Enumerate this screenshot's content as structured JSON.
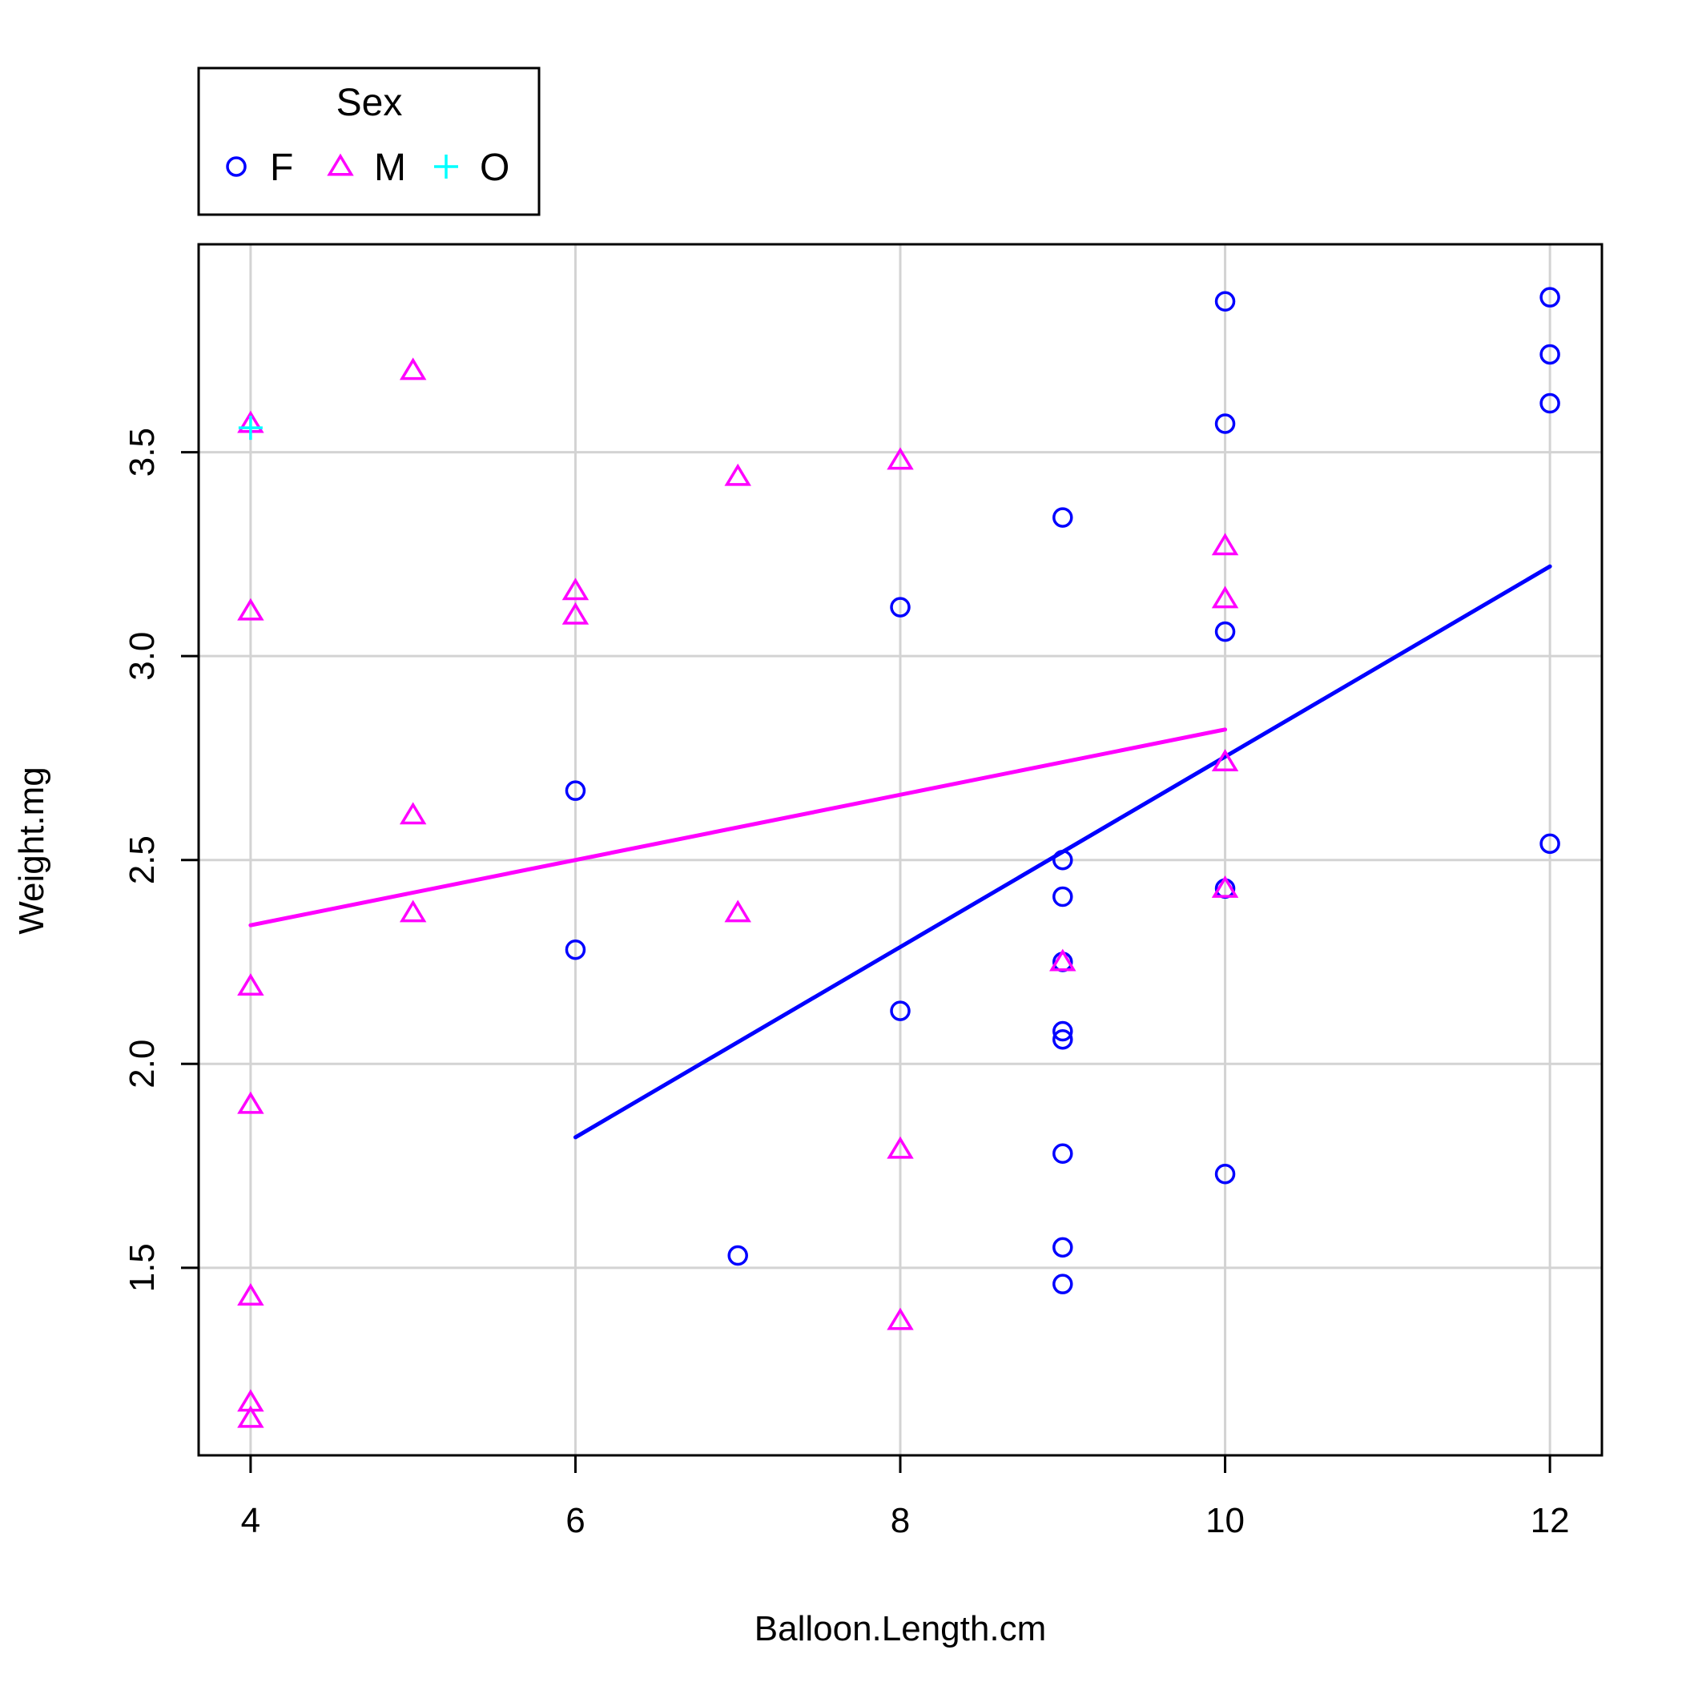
{
  "chart_data": {
    "type": "scatter",
    "title": "",
    "xlabel": "Balloon.Length.cm",
    "ylabel": "Weight.mg",
    "xlim": [
      3.68,
      12.32
    ],
    "ylim": [
      1.04,
      4.01
    ],
    "xticks": [
      4,
      6,
      8,
      10,
      12
    ],
    "yticks": [
      1.5,
      2.0,
      2.5,
      3.0,
      3.5
    ],
    "xtick_labels": [
      "4",
      "6",
      "8",
      "10",
      "12"
    ],
    "ytick_labels": [
      "1.5",
      "2.0",
      "2.5",
      "3.0",
      "3.5"
    ],
    "grid": true,
    "legend": {
      "title": "Sex",
      "placement": "top-left, outside plot",
      "entries": [
        {
          "label": "F",
          "marker": "circle",
          "color": "#0000ff"
        },
        {
          "label": "M",
          "marker": "triangle",
          "color": "#ff00ff"
        },
        {
          "label": "O",
          "marker": "plus",
          "color": "#00ffff"
        }
      ]
    },
    "series": [
      {
        "name": "F",
        "marker": "circle",
        "color": "#0000ff",
        "points": [
          [
            6,
            2.67
          ],
          [
            6,
            2.28
          ],
          [
            7,
            1.53
          ],
          [
            8,
            3.12
          ],
          [
            8,
            2.13
          ],
          [
            9,
            3.34
          ],
          [
            9,
            2.5
          ],
          [
            9,
            2.41
          ],
          [
            9,
            2.25
          ],
          [
            9,
            2.08
          ],
          [
            9,
            2.06
          ],
          [
            9,
            1.78
          ],
          [
            9,
            1.55
          ],
          [
            9,
            1.46
          ],
          [
            10,
            3.87
          ],
          [
            10,
            3.57
          ],
          [
            10,
            3.06
          ],
          [
            10,
            2.43
          ],
          [
            10,
            1.73
          ],
          [
            12,
            3.88
          ],
          [
            12,
            3.74
          ],
          [
            12,
            3.62
          ],
          [
            12,
            2.54
          ]
        ],
        "fit_line": {
          "x": [
            6,
            12
          ],
          "y": [
            1.82,
            3.22
          ]
        }
      },
      {
        "name": "M",
        "marker": "triangle",
        "color": "#ff00ff",
        "points": [
          [
            4,
            3.57
          ],
          [
            4,
            3.11
          ],
          [
            4,
            2.19
          ],
          [
            4,
            1.9
          ],
          [
            4,
            1.43
          ],
          [
            4,
            1.17
          ],
          [
            4,
            1.13
          ],
          [
            5,
            3.7
          ],
          [
            5,
            2.61
          ],
          [
            5,
            2.37
          ],
          [
            6,
            3.16
          ],
          [
            6,
            3.1
          ],
          [
            7,
            3.44
          ],
          [
            7,
            2.37
          ],
          [
            8,
            3.48
          ],
          [
            8,
            1.79
          ],
          [
            8,
            1.37
          ],
          [
            9,
            2.25
          ],
          [
            10,
            3.27
          ],
          [
            10,
            3.14
          ],
          [
            10,
            2.74
          ],
          [
            10,
            2.43
          ]
        ],
        "fit_line": {
          "x": [
            4,
            10
          ],
          "y": [
            2.34,
            2.82
          ]
        }
      },
      {
        "name": "O",
        "marker": "plus",
        "color": "#00ffff",
        "points": [
          [
            4,
            3.56
          ]
        ]
      }
    ]
  }
}
